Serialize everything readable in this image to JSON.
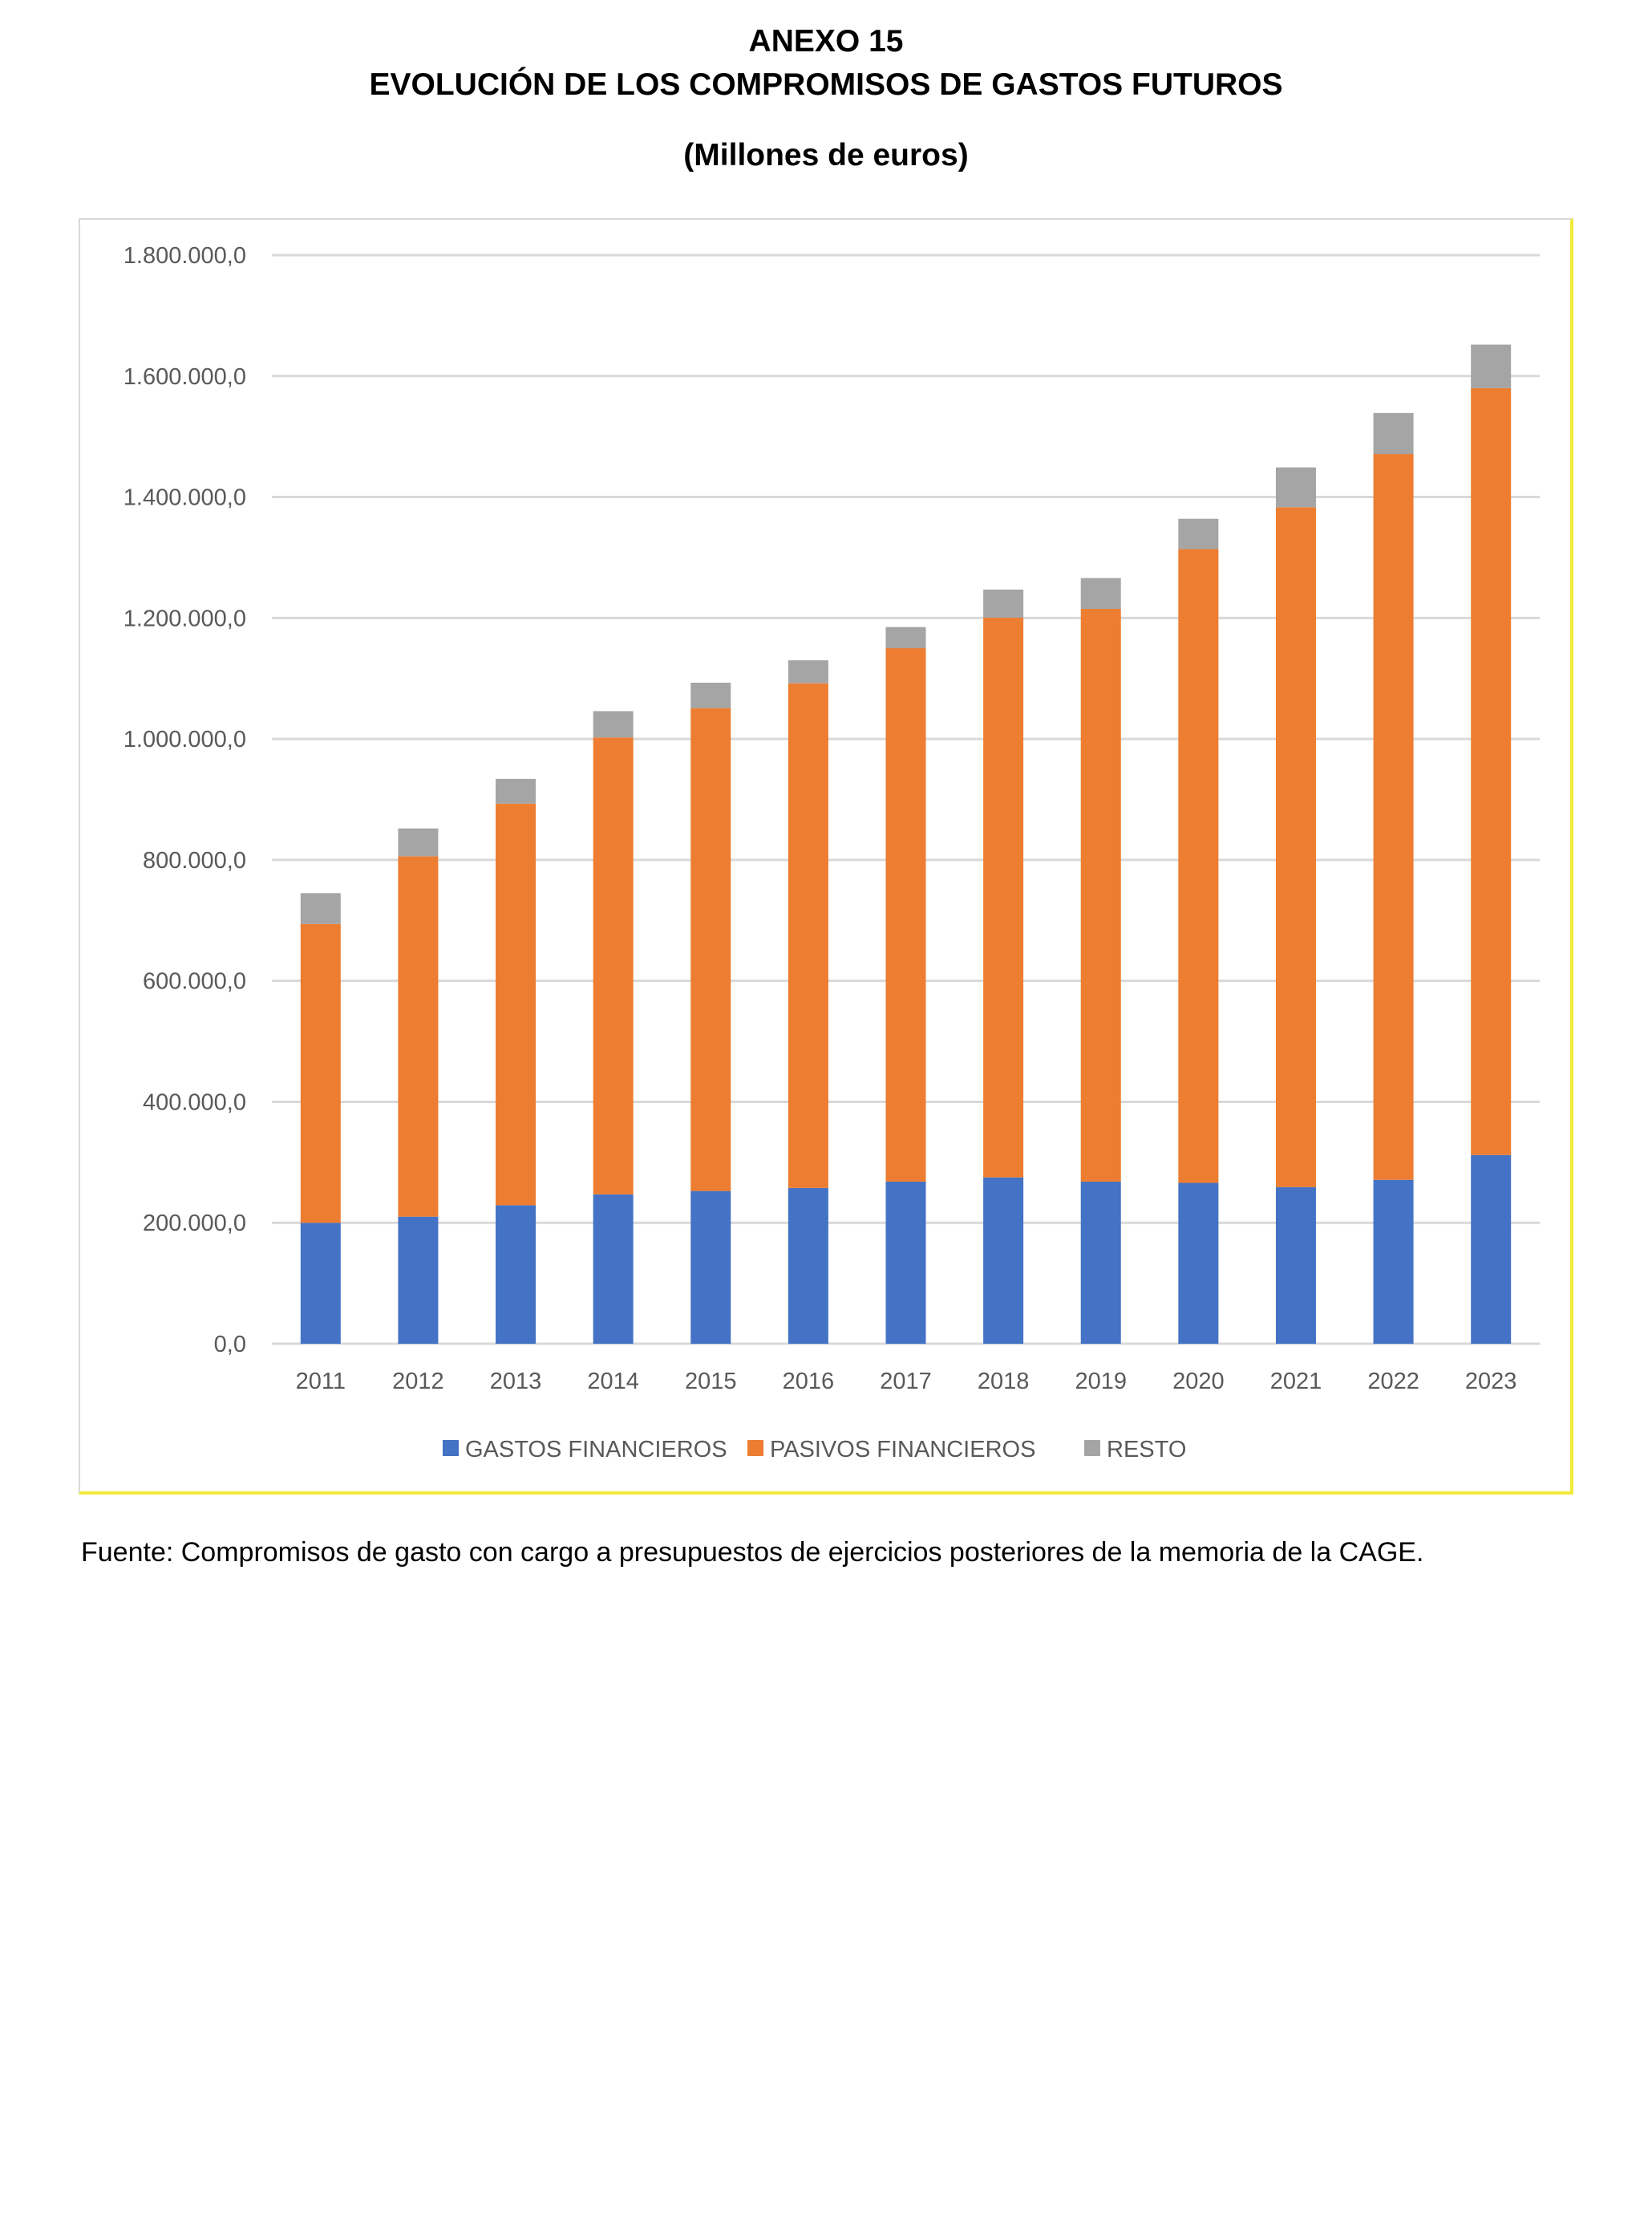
{
  "header": {
    "line1": "ANEXO 15",
    "line2": "EVOLUCIÓN DE LOS COMPROMISOS DE GASTOS FUTUROS",
    "line3": "(Millones de euros)"
  },
  "source": "Fuente: Compromisos de gasto con cargo a presupuestos de ejercicios posteriores de la memoria de la CAGE.",
  "chart_data": {
    "type": "bar",
    "stacked": true,
    "title": "",
    "xlabel": "",
    "ylabel": "",
    "ylim": [
      0,
      1800000
    ],
    "yticks": [
      0,
      200000,
      400000,
      600000,
      800000,
      1000000,
      1200000,
      1400000,
      1600000,
      1800000
    ],
    "ytick_labels": [
      "0,0",
      "200.000,0",
      "400.000,0",
      "600.000,0",
      "800.000,0",
      "1.000.000,0",
      "1.200.000,0",
      "1.400.000,0",
      "1.600.000,0",
      "1.800.000,0"
    ],
    "grid": true,
    "legend_position": "bottom",
    "categories": [
      "2011",
      "2012",
      "2013",
      "2014",
      "2015",
      "2016",
      "2017",
      "2018",
      "2019",
      "2020",
      "2021",
      "2022",
      "2023"
    ],
    "series": [
      {
        "name": "GASTOS FINANCIEROS",
        "color": "#4472c4",
        "values": [
          200000,
          210000,
          229000,
          247000,
          252500,
          257600,
          268000,
          275000,
          268000,
          266000,
          259000,
          271000,
          312000
        ]
      },
      {
        "name": "PASIVOS FINANCIEROS",
        "color": "#ed7d31",
        "values": [
          494000,
          596000,
          664000,
          755500,
          798500,
          834400,
          882000,
          925500,
          947000,
          1048000,
          1124000,
          1200000,
          1268000
        ]
      },
      {
        "name": "RESTO",
        "color": "#a5a5a5",
        "values": [
          51000,
          46000,
          41000,
          43500,
          42000,
          38000,
          35000,
          46500,
          51000,
          50000,
          66000,
          68000,
          72000
        ]
      }
    ]
  }
}
